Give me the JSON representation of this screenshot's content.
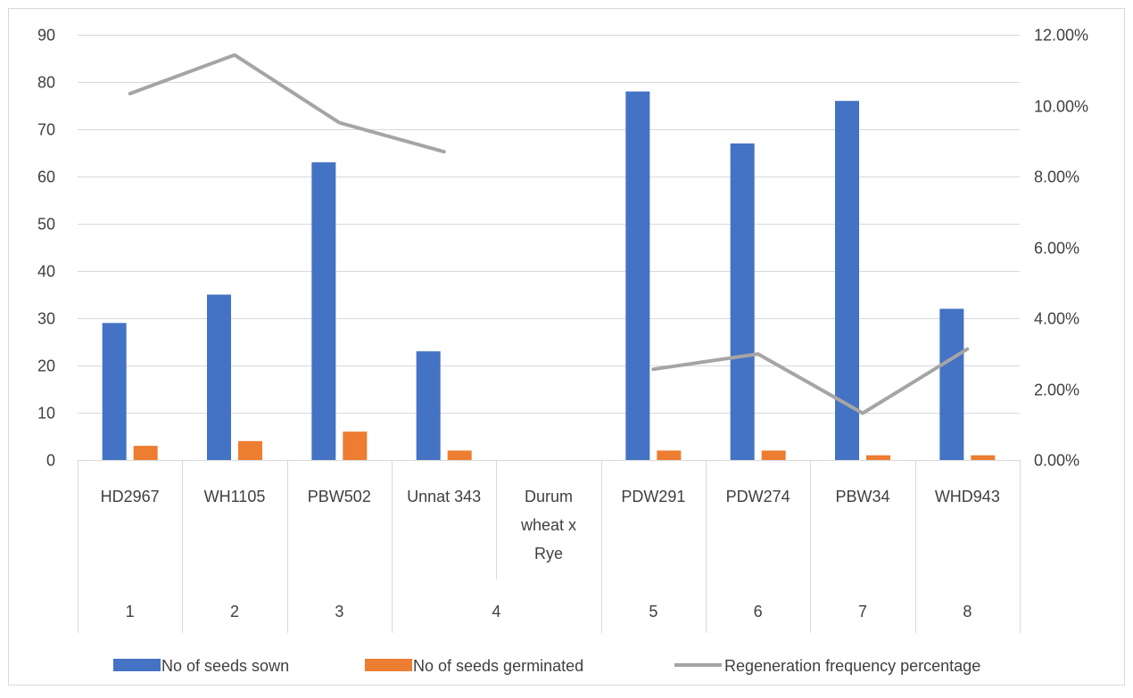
{
  "chart_data": {
    "type": "bar",
    "title": "",
    "xlabel": "",
    "ylabel": "",
    "categories": [
      {
        "group": "1",
        "label": [
          "HD2967"
        ]
      },
      {
        "group": "2",
        "label": [
          "WH1105"
        ]
      },
      {
        "group": "3",
        "label": [
          "PBW502"
        ]
      },
      {
        "group": "4",
        "label": [
          "Unnat 343"
        ]
      },
      {
        "group": "4",
        "label": [
          "Durum",
          "wheat x",
          "Rye"
        ]
      },
      {
        "group": "5",
        "label": [
          "PDW291"
        ]
      },
      {
        "group": "6",
        "label": [
          "PDW274"
        ]
      },
      {
        "group": "7",
        "label": [
          "PBW34"
        ]
      },
      {
        "group": "8",
        "label": [
          "WHD943"
        ]
      }
    ],
    "groups": [
      "1",
      "2",
      "3",
      "4",
      "5",
      "6",
      "7",
      "8"
    ],
    "series": [
      {
        "name": "No of seeds sown",
        "type": "bar",
        "axis": "left",
        "color": "#4472C4",
        "values": [
          29,
          35,
          63,
          23,
          null,
          78,
          67,
          76,
          32
        ]
      },
      {
        "name": "No of seeds germinated",
        "type": "bar",
        "axis": "left",
        "color": "#ED7D31",
        "values": [
          3,
          4,
          6,
          2,
          null,
          2,
          2,
          1,
          1
        ]
      },
      {
        "name": "Regeneration frequency percentage",
        "type": "line",
        "axis": "right",
        "color": "#A5A5A5",
        "values": [
          0.1034,
          0.1143,
          0.0952,
          0.087,
          null,
          0.0256,
          0.0299,
          0.0132,
          0.0313
        ]
      }
    ],
    "left_axis": {
      "min": 0,
      "max": 90,
      "step": 10,
      "ticks": [
        "0",
        "10",
        "20",
        "30",
        "40",
        "50",
        "60",
        "70",
        "80",
        "90"
      ]
    },
    "right_axis": {
      "min": 0,
      "max": 0.12,
      "step": 0.02,
      "ticks": [
        "0.00%",
        "2.00%",
        "4.00%",
        "6.00%",
        "8.00%",
        "10.00%",
        "12.00%"
      ]
    },
    "grid": true,
    "legend": "bottom"
  }
}
